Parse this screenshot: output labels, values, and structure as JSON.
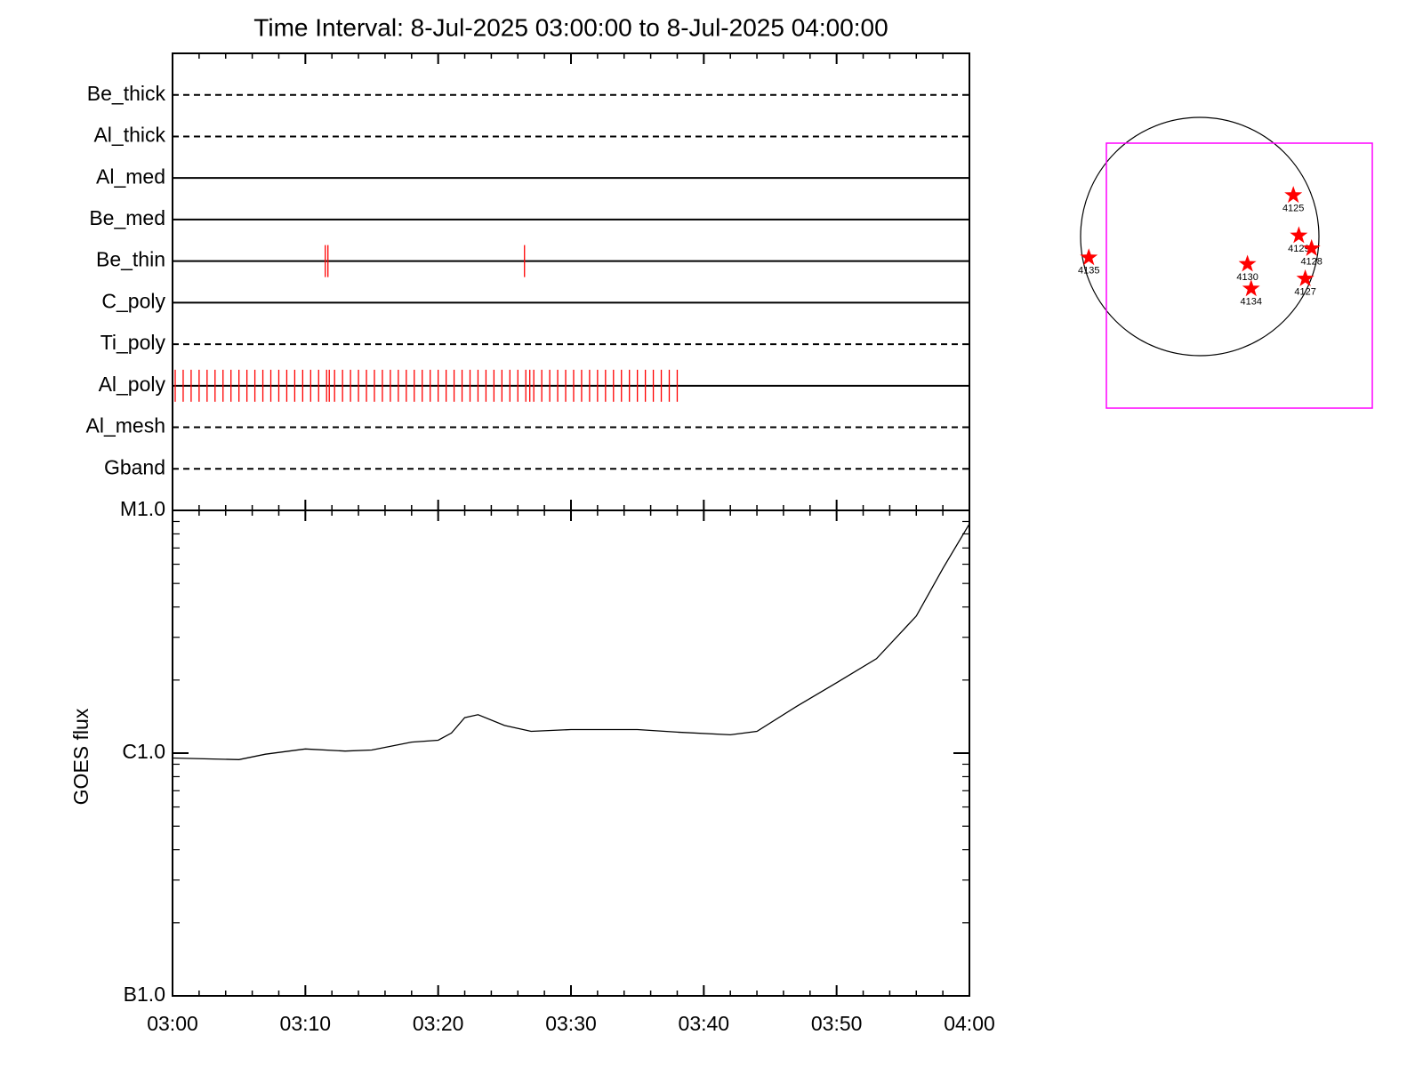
{
  "chart_data": [
    {
      "type": "timeline",
      "title": "Time Interval:  8-Jul-2025 03:00:00 to  8-Jul-2025 04:00:00",
      "xlim": [
        0,
        60
      ],
      "xticks": [
        0,
        10,
        20,
        30,
        40,
        50,
        60
      ],
      "event_color": "#ff0000",
      "series": [
        {
          "name": "Be_thick",
          "style": "dashed",
          "events": []
        },
        {
          "name": "Al_thick",
          "style": "dashed",
          "events": []
        },
        {
          "name": "Al_med",
          "style": "solid",
          "events": []
        },
        {
          "name": "Be_med",
          "style": "solid",
          "events": []
        },
        {
          "name": "Be_thin",
          "style": "solid",
          "events": [
            11.5,
            11.7,
            26.5
          ]
        },
        {
          "name": "C_poly",
          "style": "solid",
          "events": []
        },
        {
          "name": "Ti_poly",
          "style": "dashed",
          "events": []
        },
        {
          "name": "Al_poly",
          "style": "solid",
          "events": [
            0.2,
            0.8,
            1.4,
            2.0,
            2.6,
            3.2,
            3.8,
            4.4,
            5.0,
            5.6,
            6.2,
            6.8,
            7.4,
            8.0,
            8.6,
            9.2,
            9.8,
            10.4,
            11.0,
            11.6,
            11.8,
            12.2,
            12.8,
            13.4,
            14.0,
            14.6,
            15.2,
            15.8,
            16.4,
            17.0,
            17.6,
            18.2,
            18.8,
            19.4,
            20.0,
            20.6,
            21.2,
            21.8,
            22.4,
            23.0,
            23.6,
            24.2,
            24.8,
            25.4,
            26.0,
            26.6,
            26.9,
            27.2,
            27.8,
            28.4,
            29.0,
            29.6,
            30.2,
            30.8,
            31.4,
            32.0,
            32.6,
            33.2,
            33.8,
            34.4,
            35.0,
            35.6,
            36.2,
            36.8,
            37.4,
            38.0
          ]
        },
        {
          "name": "Al_mesh",
          "style": "dashed",
          "events": []
        },
        {
          "name": "Gband",
          "style": "dashed",
          "events": []
        }
      ]
    },
    {
      "type": "line",
      "y_label": "GOES flux",
      "log_scale": true,
      "color": "#000000",
      "xlim": [
        0,
        60
      ],
      "xticks": [
        {
          "value": 0,
          "label": "03:00"
        },
        {
          "value": 10,
          "label": "03:10"
        },
        {
          "value": 20,
          "label": "03:20"
        },
        {
          "value": 30,
          "label": "03:30"
        },
        {
          "value": 40,
          "label": "03:40"
        },
        {
          "value": 50,
          "label": "03:50"
        },
        {
          "value": 60,
          "label": "04:00"
        }
      ],
      "ylim": [
        1e-07,
        1e-05
      ],
      "yticks": [
        {
          "value": 1e-07,
          "label": "B1.0"
        },
        {
          "value": 1e-06,
          "label": "C1.0"
        },
        {
          "value": 1e-05,
          "label": "M1.0"
        }
      ],
      "x": [
        0,
        5,
        7,
        10,
        13,
        15,
        18,
        20,
        21,
        22,
        23,
        25,
        27,
        30,
        35,
        38,
        42,
        44,
        47,
        50,
        53,
        56,
        58,
        60
      ],
      "values": [
        9.55e-07,
        9.4e-07,
        9.9e-07,
        1.04e-06,
        1.02e-06,
        1.03e-06,
        1.11e-06,
        1.13e-06,
        1.21e-06,
        1.4e-06,
        1.44e-06,
        1.3e-06,
        1.23e-06,
        1.25e-06,
        1.25e-06,
        1.22e-06,
        1.19e-06,
        1.23e-06,
        1.56e-06,
        1.95e-06,
        2.45e-06,
        3.67e-06,
        5.76e-06,
        8.8e-06
      ]
    },
    {
      "type": "map",
      "marker_color": "#ff0000",
      "box_color": "#ff00ff",
      "points": [
        {
          "name": "4125",
          "x": 0.785,
          "y": 0.346
        },
        {
          "name": "4129",
          "x": 0.831,
          "y": 0.008
        },
        {
          "name": "4128",
          "x": 0.938,
          "y": -0.1
        },
        {
          "name": "4135",
          "x": -0.931,
          "y": -0.177
        },
        {
          "name": "4130",
          "x": 0.4,
          "y": -0.231
        },
        {
          "name": "4134",
          "x": 0.431,
          "y": -0.438
        },
        {
          "name": "4127",
          "x": 0.885,
          "y": -0.354
        }
      ]
    }
  ]
}
